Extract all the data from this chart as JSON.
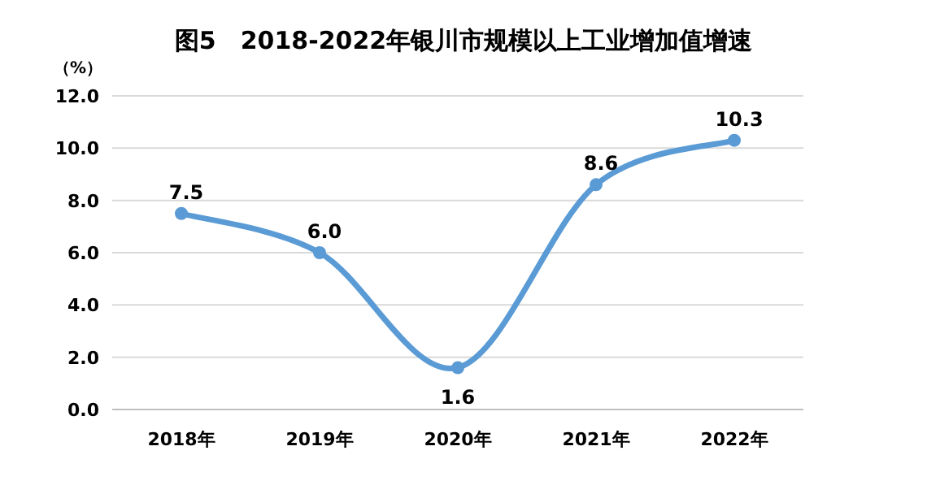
{
  "chart_data": {
    "type": "line",
    "title": "图5　2018-2022年银川市规模以上工业增加值增速",
    "ylabel": "（%）",
    "categories": [
      "2018年",
      "2019年",
      "2020年",
      "2021年",
      "2022年"
    ],
    "series": [
      {
        "color": "#5b9bd5",
        "values": [
          7.5,
          6.0,
          1.6,
          8.6,
          10.3
        ],
        "value_labels": [
          "7.5",
          "6.0",
          "1.6",
          "8.6",
          "10.3"
        ]
      }
    ],
    "ylim": [
      0,
      12
    ],
    "yticks": [
      {
        "value": 0,
        "label": "0.0"
      },
      {
        "value": 2,
        "label": "2.0"
      },
      {
        "value": 4,
        "label": "4.0"
      },
      {
        "value": 6,
        "label": "6.0"
      },
      {
        "value": 8,
        "label": "8.0"
      },
      {
        "value": 10,
        "label": "10.0"
      },
      {
        "value": 12,
        "label": "12.0"
      }
    ],
    "grid": "y",
    "marker": "circle",
    "line_style": "solid"
  }
}
